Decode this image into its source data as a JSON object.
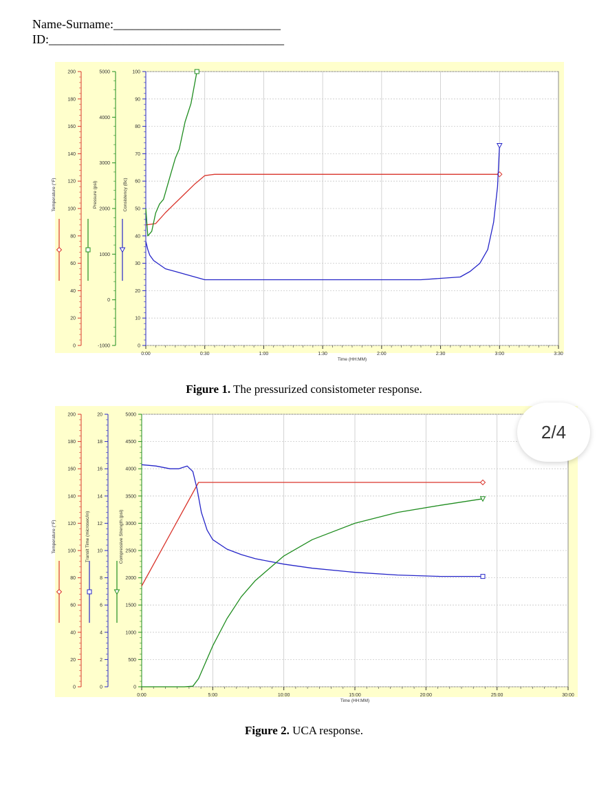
{
  "header": {
    "name_label": "Name-Surname:___________________________",
    "id_label": "ID:______________________________________"
  },
  "page_badge": "2/4",
  "captions": {
    "fig1_bold": "Figure 1.",
    "fig1_text": " The pressurized consistometer response.",
    "fig2_bold": "Figure 2.",
    "fig2_text": " UCA response."
  },
  "colors": {
    "red": "#d9342b",
    "green": "#1e8c1e",
    "blue": "#2424c8",
    "panel": "#ffffcc",
    "grid": "#c8c8c8"
  },
  "chart_data": [
    {
      "type": "line",
      "xlabel": "Time (HH:MM)",
      "x_ticks": [
        "0:00",
        "0:30",
        "1:00",
        "1:30",
        "2:00",
        "2:30",
        "3:00",
        "3:30"
      ],
      "xlim": [
        0,
        210
      ],
      "axes": [
        {
          "label": "Temperature (°F)",
          "ticks": [
            "0",
            "20",
            "40",
            "60",
            "80",
            "100",
            "120",
            "140",
            "160",
            "180",
            "200"
          ],
          "range": [
            0,
            200
          ]
        },
        {
          "label": "Pressure (psi)",
          "ticks": [
            "-1000",
            "0",
            "1000",
            "2000",
            "3000",
            "4000",
            "5000"
          ],
          "range": [
            -1000,
            5000
          ]
        },
        {
          "label": "Consistency (Bc)",
          "ticks": [
            "0",
            "10",
            "20",
            "30",
            "40",
            "50",
            "60",
            "70",
            "80",
            "90",
            "100"
          ],
          "range": [
            0,
            100
          ]
        }
      ],
      "series": [
        {
          "name": "Temperature (°F)",
          "axis": 0,
          "marker": "diamond",
          "x": [
            0,
            5,
            10,
            15,
            20,
            25,
            30,
            35,
            60,
            120,
            175,
            180
          ],
          "y": [
            88,
            89,
            97,
            104,
            111,
            118,
            124,
            125,
            125,
            125,
            125,
            125
          ]
        },
        {
          "name": "Pressure (psi)",
          "axis": 1,
          "marker": "square",
          "x": [
            0,
            1,
            3,
            5,
            7,
            9,
            11,
            13,
            15,
            17,
            20,
            23,
            26
          ],
          "y": [
            2000,
            1400,
            1500,
            1900,
            2100,
            2200,
            2500,
            2800,
            3100,
            3300,
            3900,
            4300,
            5000
          ]
        },
        {
          "name": "Consistency (Bc)",
          "axis": 2,
          "marker": "triangle",
          "x": [
            0,
            1,
            2,
            4,
            6,
            10,
            15,
            20,
            25,
            30,
            60,
            100,
            140,
            160,
            165,
            170,
            174,
            177,
            179,
            180
          ],
          "y": [
            38,
            35,
            33,
            31,
            30,
            28,
            27,
            26,
            25,
            24,
            24,
            24,
            24,
            25,
            27,
            30,
            35,
            45,
            58,
            73
          ]
        }
      ]
    },
    {
      "type": "line",
      "xlabel": "Time (HH:MM)",
      "x_ticks": [
        "0:00",
        "5:00",
        "10:00",
        "15:00",
        "20:00",
        "25:00",
        "30:00"
      ],
      "xlim": [
        0,
        30
      ],
      "axes": [
        {
          "label": "Temperature (°F)",
          "ticks": [
            "0",
            "20",
            "40",
            "60",
            "80",
            "100",
            "120",
            "140",
            "160",
            "180",
            "200"
          ],
          "range": [
            0,
            200
          ]
        },
        {
          "label": "Transit Time (microsec/in)",
          "ticks": [
            "0",
            "2",
            "4",
            "6",
            "8",
            "10",
            "12",
            "14",
            "16",
            "18",
            "20"
          ],
          "range": [
            0,
            20
          ]
        },
        {
          "label": "Compressive Strength (psi)",
          "ticks": [
            "0",
            "500",
            "1000",
            "1500",
            "2000",
            "2500",
            "3000",
            "3500",
            "4000",
            "4500",
            "5000"
          ],
          "range": [
            0,
            5000
          ]
        }
      ],
      "series": [
        {
          "name": "Temperature (°F)",
          "axis": 0,
          "marker": "diamond",
          "x": [
            0,
            4,
            6,
            12,
            18,
            24
          ],
          "y": [
            74,
            150,
            150,
            150,
            150,
            150
          ]
        },
        {
          "name": "Transit Time (microsec/in)",
          "axis": 1,
          "marker": "square",
          "x": [
            0,
            1,
            2,
            2.6,
            3.2,
            3.6,
            3.9,
            4.2,
            4.6,
            5,
            6,
            7,
            8,
            10,
            12,
            15,
            18,
            21,
            24
          ],
          "y": [
            16.3,
            16.2,
            16.0,
            16.0,
            16.2,
            15.8,
            14.5,
            12.8,
            11.5,
            10.8,
            10.1,
            9.7,
            9.4,
            9.0,
            8.7,
            8.4,
            8.2,
            8.1,
            8.1
          ]
        },
        {
          "name": "Compressive Strength (psi)",
          "axis": 2,
          "marker": "triangle",
          "x": [
            0,
            3,
            3.6,
            4,
            4.5,
            5,
            6,
            7,
            8,
            10,
            12,
            15,
            18,
            21,
            24
          ],
          "y": [
            0,
            0,
            10,
            150,
            450,
            750,
            1250,
            1650,
            1950,
            2400,
            2700,
            3000,
            3200,
            3330,
            3450
          ]
        }
      ]
    }
  ]
}
